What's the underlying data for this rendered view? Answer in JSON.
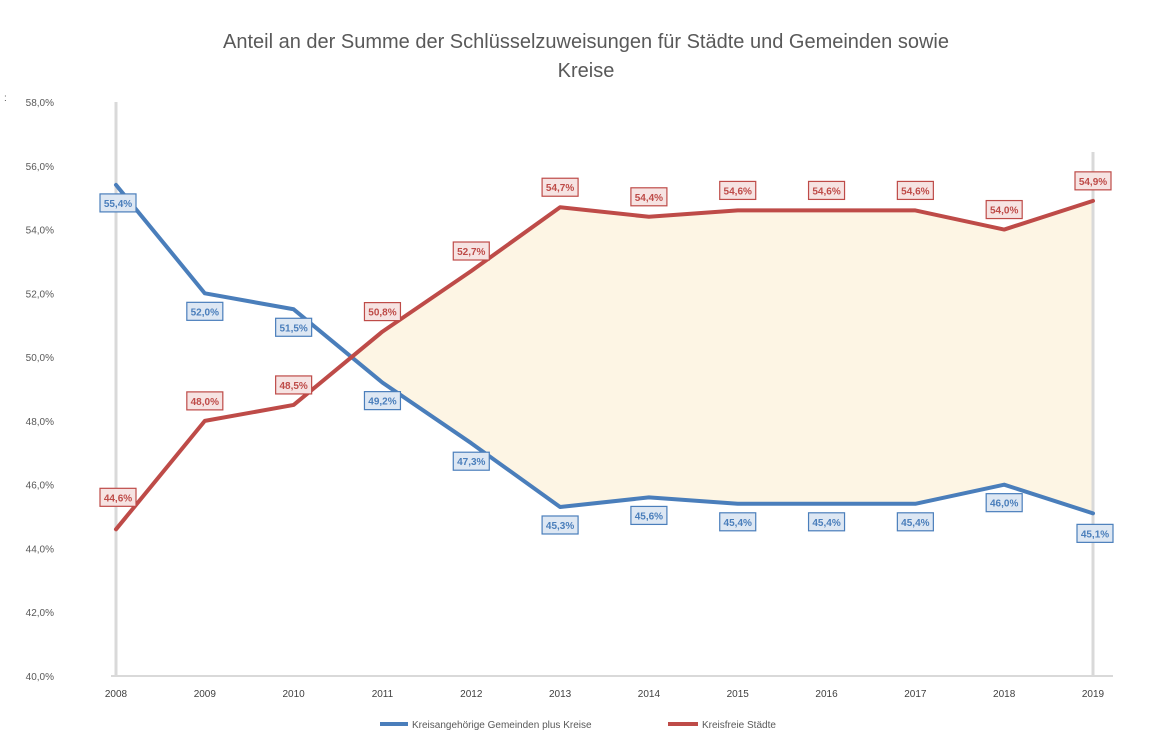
{
  "chart_data": {
    "type": "line",
    "title_lines": [
      "Anteil an der Summe der Schlüsselzuweisungen für Städte und Gemeinden sowie",
      "Kreise"
    ],
    "corner_mark": ":",
    "x": [
      "2008",
      "2009",
      "2010",
      "2011",
      "2012",
      "2013",
      "2014",
      "2015",
      "2016",
      "2017",
      "2018",
      "2019"
    ],
    "ylim": [
      40.0,
      58.0
    ],
    "yticks": [
      "40,0%",
      "42,0%",
      "44,0%",
      "46,0%",
      "48,0%",
      "50,0%",
      "52,0%",
      "54,0%",
      "56,0%",
      "58,0%"
    ],
    "grid": false,
    "legend_position": "bottom",
    "shaded_between_series": true,
    "series": [
      {
        "name": "Kreisangehörige Gemeinden plus Kreise",
        "color": "#4a7ebb",
        "values": [
          55.4,
          52.0,
          51.5,
          49.2,
          47.3,
          45.3,
          45.6,
          45.4,
          45.4,
          45.4,
          46.0,
          45.1
        ],
        "labels": [
          "55,4%",
          "52,0%",
          "51,5%",
          "49,2%",
          "47,3%",
          "45,3%",
          "45,6%",
          "45,4%",
          "45,4%",
          "45,4%",
          "46,0%",
          "45,1%"
        ]
      },
      {
        "name": "Kreisfreie Städte",
        "color": "#be4b48",
        "values": [
          44.6,
          48.0,
          48.5,
          50.8,
          52.7,
          54.7,
          54.4,
          54.6,
          54.6,
          54.6,
          54.0,
          54.9
        ],
        "labels": [
          "44,6%",
          "48,0%",
          "48,5%",
          "50,8%",
          "52,7%",
          "54,7%",
          "54,4%",
          "54,6%",
          "54,6%",
          "54,6%",
          "54,0%",
          "54,9%"
        ]
      }
    ],
    "colors": {
      "fill": "#fdf5e4",
      "axis": "#d9d9d9",
      "tick_text": "#595959",
      "title_text": "#595959",
      "label_bg_blue": "#dde7f3",
      "label_bg_red": "#f6e3e2"
    }
  }
}
